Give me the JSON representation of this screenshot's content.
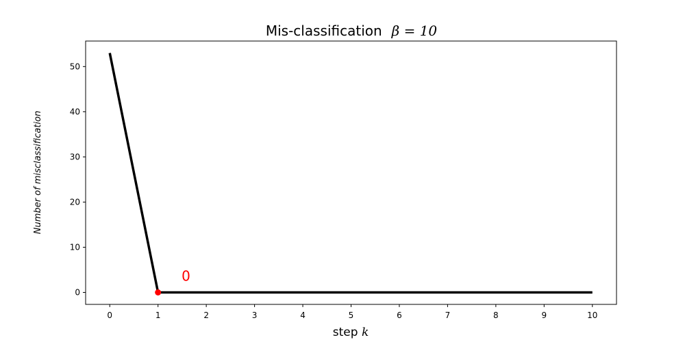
{
  "chart_data": {
    "type": "line",
    "title": {
      "text": "Mis-classification",
      "math_symbol": "β",
      "math_rest": " = 10"
    },
    "xlabel": {
      "text": "step ",
      "math": "k"
    },
    "ylabel": "Number of misclassification",
    "x": [
      0,
      1,
      2,
      3,
      4,
      5,
      6,
      7,
      8,
      9,
      10
    ],
    "series": [
      {
        "values": [
          53,
          0,
          0,
          0,
          0,
          0,
          0,
          0,
          0,
          0,
          0
        ],
        "color": "#000000"
      }
    ],
    "xlim": [
      -0.5,
      10.5
    ],
    "ylim": [
      -2.65,
      55.65
    ],
    "xticks": [
      0,
      1,
      2,
      3,
      4,
      5,
      6,
      7,
      8,
      9,
      10
    ],
    "yticks": [
      0,
      10,
      20,
      30,
      40,
      50
    ],
    "grid": false,
    "highlight_point": {
      "x": 1,
      "y": 0,
      "color": "#ff0000"
    },
    "annotations": [
      {
        "text": "0",
        "x": 1.58,
        "y": 2.6,
        "color": "#ff0000"
      }
    ]
  }
}
